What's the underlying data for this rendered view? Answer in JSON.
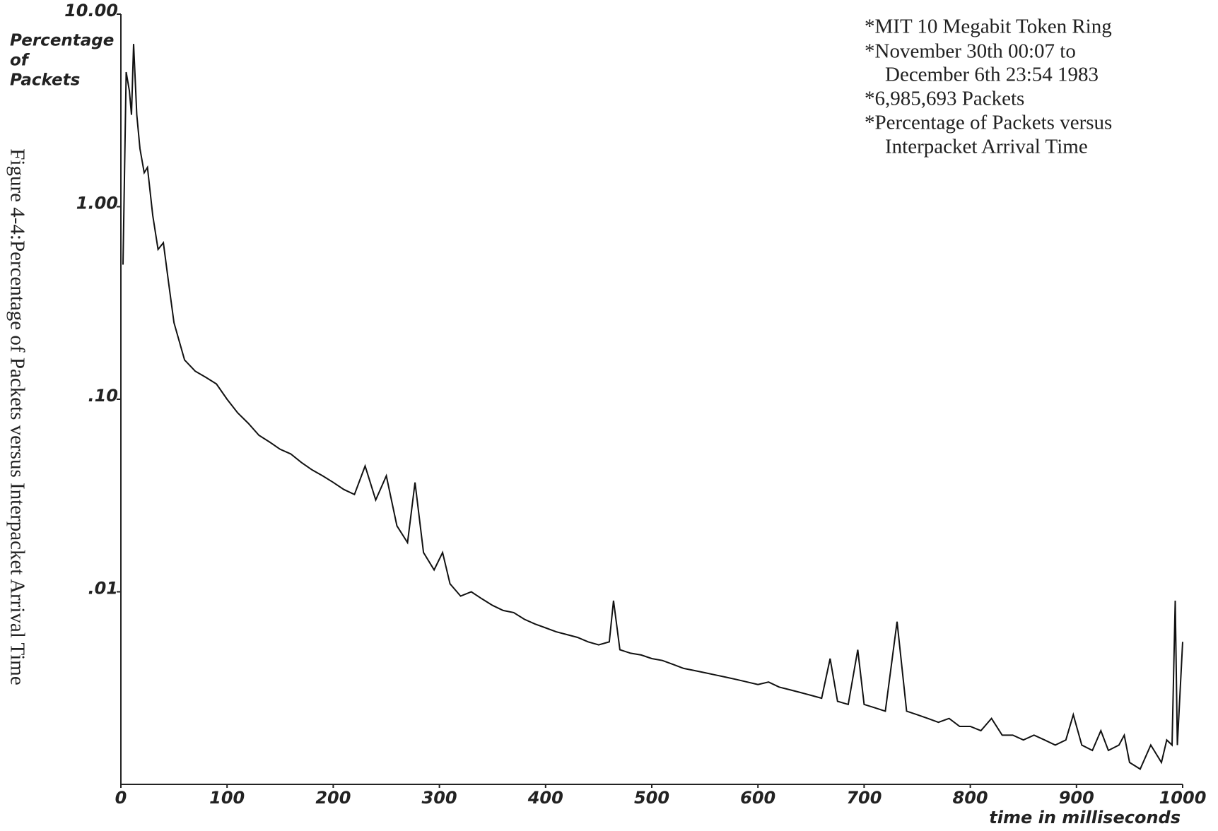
{
  "chart_data": {
    "type": "line",
    "caption": "Figure 4-4:Percentage of Packets versus Interpacket Arrival Time",
    "y_label": [
      "Percentage",
      "of",
      "Packets"
    ],
    "x_label": "time in milliseconds",
    "annotations": [
      "*MIT 10 Megabit Token Ring",
      "*November 30th 00:07 to",
      "December 6th 23:54 1983",
      "*6,985,693 Packets",
      "*Percentage of Packets versus",
      "Interpacket Arrival Time"
    ],
    "log_y": true,
    "color": "#111111",
    "xlim": [
      0,
      1000
    ],
    "xticks": [
      0,
      100,
      200,
      300,
      400,
      500,
      600,
      700,
      800,
      900,
      1000
    ],
    "ylim": [
      0.001,
      10
    ],
    "yticks": [
      {
        "value": 10,
        "label": "10.00"
      },
      {
        "value": 1,
        "label": "1.00"
      },
      {
        "value": 0.1,
        "label": ".10"
      },
      {
        "value": 0.01,
        "label": ".01"
      }
    ],
    "x": [
      2,
      5,
      8,
      10,
      12,
      15,
      18,
      22,
      25,
      30,
      35,
      40,
      45,
      50,
      55,
      60,
      70,
      80,
      90,
      100,
      110,
      120,
      130,
      140,
      150,
      160,
      170,
      180,
      190,
      200,
      210,
      220,
      230,
      240,
      250,
      260,
      270,
      277,
      285,
      295,
      303,
      310,
      320,
      330,
      340,
      350,
      360,
      370,
      380,
      390,
      400,
      410,
      420,
      430,
      440,
      450,
      460,
      464,
      470,
      480,
      490,
      500,
      510,
      520,
      530,
      540,
      550,
      560,
      570,
      580,
      590,
      600,
      610,
      620,
      630,
      640,
      650,
      660,
      668,
      675,
      685,
      694,
      700,
      710,
      720,
      731,
      740,
      750,
      760,
      770,
      780,
      790,
      800,
      810,
      820,
      830,
      840,
      850,
      860,
      870,
      880,
      890,
      897,
      905,
      915,
      923,
      930,
      940,
      945,
      950,
      960,
      970,
      980,
      985,
      990,
      993,
      995,
      1000
    ],
    "series": [
      {
        "color": "#111111",
        "values": [
          0.5,
          5,
          4,
          3,
          7,
          3,
          2,
          1.5,
          1.6,
          0.9,
          0.6,
          0.65,
          0.4,
          0.25,
          0.2,
          0.16,
          0.14,
          0.13,
          0.12,
          0.1,
          0.085,
          0.075,
          0.065,
          0.06,
          0.055,
          0.052,
          0.047,
          0.043,
          0.04,
          0.037,
          0.034,
          0.032,
          0.045,
          0.03,
          0.04,
          0.022,
          0.018,
          0.037,
          0.016,
          0.013,
          0.016,
          0.011,
          0.0095,
          0.01,
          0.0092,
          0.0085,
          0.008,
          0.0078,
          0.0072,
          0.0068,
          0.0065,
          0.0062,
          0.006,
          0.0058,
          0.0055,
          0.0053,
          0.0055,
          0.009,
          0.005,
          0.0048,
          0.0047,
          0.0045,
          0.0044,
          0.0042,
          0.004,
          0.0039,
          0.0038,
          0.0037,
          0.0036,
          0.0035,
          0.0034,
          0.0033,
          0.0034,
          0.0032,
          0.0031,
          0.003,
          0.0029,
          0.0028,
          0.0045,
          0.0027,
          0.0026,
          0.005,
          0.0026,
          0.0025,
          0.0024,
          0.007,
          0.0024,
          0.0023,
          0.0022,
          0.0021,
          0.0022,
          0.002,
          0.002,
          0.0019,
          0.0022,
          0.0018,
          0.0018,
          0.0017,
          0.0018,
          0.0017,
          0.0016,
          0.0017,
          0.0023,
          0.0016,
          0.0015,
          0.0019,
          0.0015,
          0.0016,
          0.0018,
          0.0013,
          0.0012,
          0.0016,
          0.0013,
          0.0017,
          0.0016,
          0.009,
          0.0016,
          0.0055
        ]
      }
    ]
  }
}
